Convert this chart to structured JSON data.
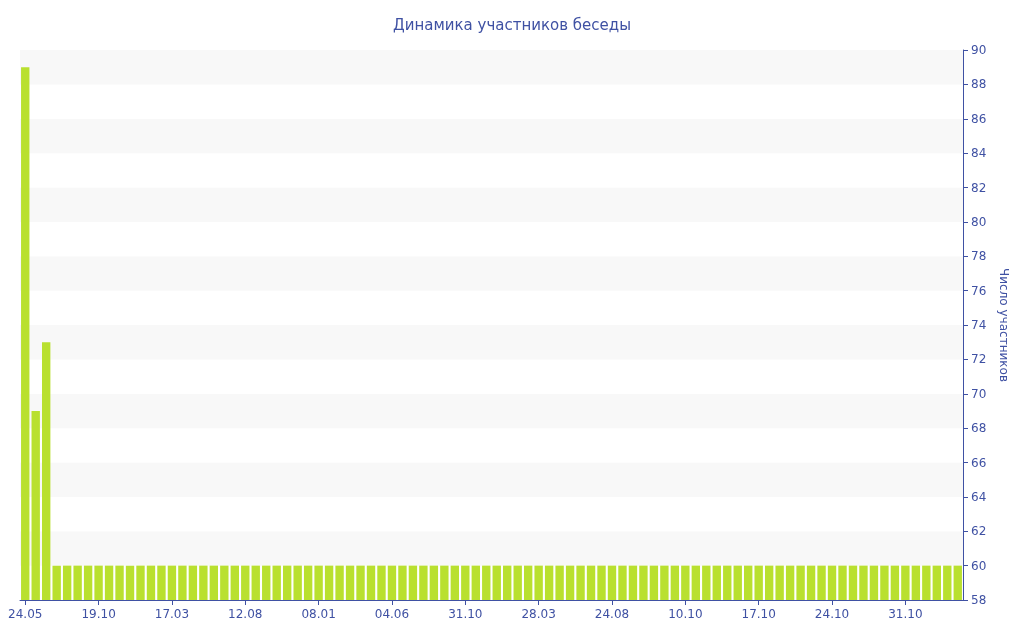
{
  "chart_data": {
    "type": "bar",
    "title": "Динамика участников беседы",
    "y2label": "Число участников",
    "categories": [
      "24.05",
      null,
      null,
      null,
      null,
      null,
      null,
      "19.10",
      null,
      null,
      null,
      null,
      null,
      null,
      "17.03",
      null,
      null,
      null,
      null,
      null,
      null,
      "12.08",
      null,
      null,
      null,
      null,
      null,
      null,
      "08.01",
      null,
      null,
      null,
      null,
      null,
      null,
      "04.06",
      null,
      null,
      null,
      null,
      null,
      null,
      "31.10",
      null,
      null,
      null,
      null,
      null,
      null,
      "28.03",
      null,
      null,
      null,
      null,
      null,
      null,
      "24.08",
      null,
      null,
      null,
      null,
      null,
      null,
      "10.10",
      null,
      null,
      null,
      null,
      null,
      null,
      "17.10",
      null,
      null,
      null,
      null,
      null,
      null,
      "24.10",
      null,
      null,
      null,
      null,
      null,
      null,
      "31.10",
      null,
      null,
      null,
      null,
      null
    ],
    "series": [
      {
        "color": "#b9e02f",
        "axis": "y2",
        "values": [
          89,
          69,
          73,
          60,
          60,
          60,
          60,
          60,
          60,
          60,
          60,
          60,
          60,
          60,
          60,
          60,
          60,
          60,
          60,
          60,
          60,
          60,
          60,
          60,
          60,
          60,
          60,
          60,
          60,
          60,
          60,
          60,
          60,
          60,
          60,
          60,
          60,
          60,
          60,
          60,
          60,
          60,
          60,
          60,
          60,
          60,
          60,
          60,
          60,
          60,
          60,
          60,
          60,
          60,
          60,
          60,
          60,
          60,
          60,
          60,
          60,
          60,
          60,
          60,
          60,
          60,
          60,
          60,
          60,
          60,
          60,
          60,
          60,
          60,
          60,
          60,
          60,
          60,
          60,
          60,
          60,
          60,
          60,
          60,
          60,
          60,
          60,
          60,
          60,
          60
        ]
      }
    ],
    "y2lim": [
      58,
      90
    ],
    "y2ticks": [
      58,
      60,
      62,
      64,
      66,
      68,
      70,
      72,
      74,
      76,
      78,
      80,
      82,
      84,
      86,
      88,
      90
    ]
  }
}
